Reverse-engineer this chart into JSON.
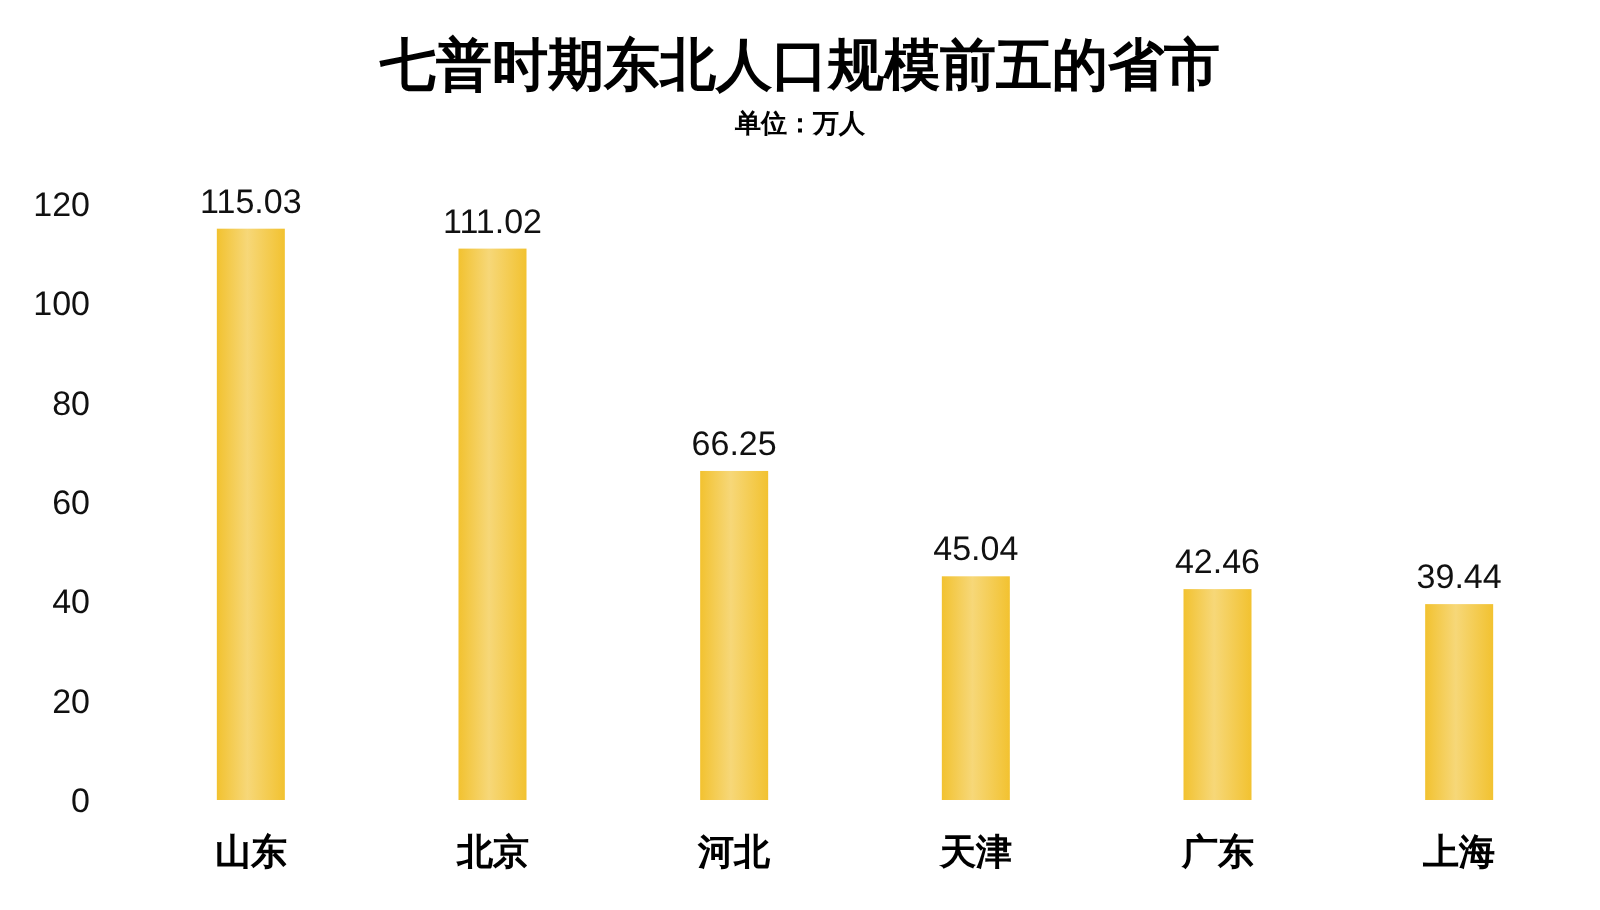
{
  "chart_data": {
    "type": "bar",
    "title": "七普时期东北人口规模前五的省市",
    "subtitle": "单位：万人",
    "categories": [
      "山东",
      "北京",
      "河北",
      "天津",
      "广东",
      "上海"
    ],
    "values": [
      115.03,
      111.02,
      66.25,
      45.04,
      42.46,
      39.44
    ],
    "color": "#f2c230",
    "ylim": [
      0,
      120
    ],
    "yticks": [
      0,
      20,
      40,
      60,
      80,
      100,
      120
    ],
    "data_labels": true
  }
}
